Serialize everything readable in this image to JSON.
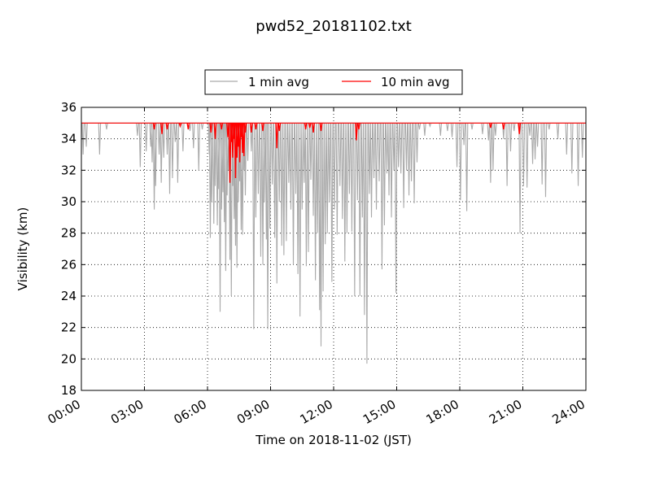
{
  "chart_data": {
    "type": "line",
    "title": "pwd52_20181102.txt",
    "xlabel": "Time on 2018-11-02 (JST)",
    "ylabel": "Visibility (km)",
    "xlim": [
      "00:00",
      "24:00"
    ],
    "ylim": [
      18,
      36
    ],
    "xticks": [
      "00:00",
      "03:00",
      "06:00",
      "09:00",
      "12:00",
      "15:00",
      "18:00",
      "21:00",
      "24:00"
    ],
    "yticks": [
      18,
      20,
      22,
      24,
      26,
      28,
      30,
      32,
      34,
      36
    ],
    "grid": true,
    "legend_position": "top-center",
    "series": [
      {
        "name": "1 min avg",
        "color": "#aaaaaa",
        "baseline": 35.0,
        "dips": [
          [
            "00:05",
            33.0
          ],
          [
            "00:14",
            33.5
          ],
          [
            "00:52",
            33.0
          ],
          [
            "01:12",
            34.6
          ],
          [
            "02:40",
            34.2
          ],
          [
            "02:48",
            32.2
          ],
          [
            "03:05",
            33.2
          ],
          [
            "03:18",
            33.5
          ],
          [
            "03:22",
            32.5
          ],
          [
            "03:28",
            29.5
          ],
          [
            "03:32",
            31.0
          ],
          [
            "03:42",
            33.0
          ],
          [
            "03:48",
            31.2
          ],
          [
            "03:55",
            32.8
          ],
          [
            "04:05",
            33.0
          ],
          [
            "04:12",
            30.5
          ],
          [
            "04:20",
            31.5
          ],
          [
            "04:28",
            33.8
          ],
          [
            "04:35",
            31.2
          ],
          [
            "04:50",
            33.2
          ],
          [
            "05:10",
            34.5
          ],
          [
            "05:20",
            33.4
          ],
          [
            "05:35",
            32.0
          ],
          [
            "05:45",
            34.6
          ],
          [
            "06:05",
            33.0
          ],
          [
            "06:08",
            27.7
          ],
          [
            "06:12",
            30.0
          ],
          [
            "06:18",
            28.6
          ],
          [
            "06:22",
            31.0
          ],
          [
            "06:28",
            28.5
          ],
          [
            "06:32",
            30.8
          ],
          [
            "06:36",
            23.0
          ],
          [
            "06:40",
            29.5
          ],
          [
            "06:44",
            30.6
          ],
          [
            "06:48",
            28.7
          ],
          [
            "06:52",
            25.6
          ],
          [
            "06:56",
            30.4
          ],
          [
            "07:00",
            32.0
          ],
          [
            "07:04",
            26.3
          ],
          [
            "07:08",
            24.0
          ],
          [
            "07:12",
            31.0
          ],
          [
            "07:16",
            28.9
          ],
          [
            "07:20",
            27.2
          ],
          [
            "07:24",
            25.8
          ],
          [
            "07:28",
            30.0
          ],
          [
            "07:32",
            31.3
          ],
          [
            "07:36",
            28.2
          ],
          [
            "07:40",
            27.9
          ],
          [
            "07:44",
            32.0
          ],
          [
            "07:48",
            30.4
          ],
          [
            "07:55",
            32.6
          ],
          [
            "08:05",
            33.2
          ],
          [
            "08:12",
            21.9
          ],
          [
            "08:18",
            29.0
          ],
          [
            "08:25",
            30.5
          ],
          [
            "08:32",
            26.5
          ],
          [
            "08:38",
            26.0
          ],
          [
            "08:42",
            30.0
          ],
          [
            "08:48",
            27.6
          ],
          [
            "08:52",
            21.9
          ],
          [
            "08:58",
            28.3
          ],
          [
            "09:05",
            31.1
          ],
          [
            "09:12",
            27.7
          ],
          [
            "09:18",
            24.8
          ],
          [
            "09:25",
            30.0
          ],
          [
            "09:32",
            27.2
          ],
          [
            "09:38",
            26.6
          ],
          [
            "09:45",
            27.5
          ],
          [
            "09:52",
            31.2
          ],
          [
            "09:58",
            29.5
          ],
          [
            "10:05",
            26.0
          ],
          [
            "10:12",
            30.5
          ],
          [
            "10:18",
            25.4
          ],
          [
            "10:24",
            22.7
          ],
          [
            "10:30",
            29.5
          ],
          [
            "10:36",
            31.2
          ],
          [
            "10:42",
            25.9
          ],
          [
            "10:48",
            26.8
          ],
          [
            "10:55",
            31.4
          ],
          [
            "11:02",
            29.1
          ],
          [
            "11:08",
            25.0
          ],
          [
            "11:14",
            28.0
          ],
          [
            "11:20",
            23.1
          ],
          [
            "11:24",
            20.8
          ],
          [
            "11:30",
            24.3
          ],
          [
            "11:36",
            27.3
          ],
          [
            "11:42",
            28.0
          ],
          [
            "11:48",
            30.0
          ],
          [
            "11:55",
            24.9
          ],
          [
            "12:02",
            29.5
          ],
          [
            "12:10",
            27.9
          ],
          [
            "12:18",
            31.0
          ],
          [
            "12:25",
            28.9
          ],
          [
            "12:32",
            26.2
          ],
          [
            "12:38",
            28.0
          ],
          [
            "12:45",
            30.5
          ],
          [
            "12:52",
            28.1
          ],
          [
            "13:00",
            24.0
          ],
          [
            "13:08",
            30.1
          ],
          [
            "13:15",
            24.0
          ],
          [
            "13:22",
            29.0
          ],
          [
            "13:28",
            22.8
          ],
          [
            "13:35",
            19.7
          ],
          [
            "13:42",
            30.5
          ],
          [
            "13:48",
            29.0
          ],
          [
            "13:55",
            31.5
          ],
          [
            "14:02",
            29.5
          ],
          [
            "14:10",
            31.3
          ],
          [
            "14:18",
            25.7
          ],
          [
            "14:25",
            28.5
          ],
          [
            "14:32",
            31.8
          ],
          [
            "14:38",
            30.4
          ],
          [
            "14:45",
            29.0
          ],
          [
            "14:52",
            32.0
          ],
          [
            "14:58",
            24.2
          ],
          [
            "15:05",
            32.2
          ],
          [
            "15:12",
            31.8
          ],
          [
            "15:20",
            29.6
          ],
          [
            "15:28",
            32.0
          ],
          [
            "15:35",
            30.4
          ],
          [
            "15:42",
            31.3
          ],
          [
            "15:50",
            29.9
          ],
          [
            "15:58",
            32.5
          ],
          [
            "16:05",
            34.6
          ],
          [
            "16:20",
            34.2
          ],
          [
            "16:35",
            34.8
          ],
          [
            "17:05",
            34.2
          ],
          [
            "17:25",
            34.5
          ],
          [
            "17:38",
            34.1
          ],
          [
            "17:52",
            32.2
          ],
          [
            "18:02",
            30.1
          ],
          [
            "18:12",
            33.6
          ],
          [
            "18:20",
            29.4
          ],
          [
            "18:35",
            34.6
          ],
          [
            "19:05",
            34.3
          ],
          [
            "19:22",
            33.9
          ],
          [
            "19:28",
            31.2
          ],
          [
            "19:35",
            32.0
          ],
          [
            "19:42",
            34.2
          ],
          [
            "20:05",
            34.0
          ],
          [
            "20:15",
            31.0
          ],
          [
            "20:25",
            33.2
          ],
          [
            "20:35",
            34.5
          ],
          [
            "20:52",
            28.0
          ],
          [
            "21:02",
            31.0
          ],
          [
            "21:12",
            30.9
          ],
          [
            "21:20",
            34.2
          ],
          [
            "21:28",
            32.4
          ],
          [
            "21:35",
            32.7
          ],
          [
            "21:42",
            33.5
          ],
          [
            "21:55",
            31.1
          ],
          [
            "22:05",
            30.3
          ],
          [
            "22:15",
            34.6
          ],
          [
            "22:40",
            34.0
          ],
          [
            "23:05",
            33.0
          ],
          [
            "23:20",
            31.8
          ],
          [
            "23:38",
            31.0
          ],
          [
            "23:50",
            32.8
          ]
        ]
      },
      {
        "name": "10 min avg",
        "color": "#ff0000",
        "baseline": 35.0,
        "dips": [
          [
            "03:28",
            34.6
          ],
          [
            "03:50",
            34.3
          ],
          [
            "04:05",
            34.6
          ],
          [
            "04:42",
            34.8
          ],
          [
            "05:05",
            34.6
          ],
          [
            "06:10",
            34.4
          ],
          [
            "06:22",
            34.0
          ],
          [
            "06:40",
            34.6
          ],
          [
            "06:58",
            34.1
          ],
          [
            "07:04",
            31.2
          ],
          [
            "07:08",
            33.8
          ],
          [
            "07:12",
            32.8
          ],
          [
            "07:16",
            34.0
          ],
          [
            "07:20",
            31.5
          ],
          [
            "07:24",
            32.8
          ],
          [
            "07:28",
            33.5
          ],
          [
            "07:32",
            32.5
          ],
          [
            "07:36",
            34.1
          ],
          [
            "07:40",
            33.1
          ],
          [
            "07:44",
            32.9
          ],
          [
            "07:48",
            34.4
          ],
          [
            "08:05",
            34.4
          ],
          [
            "08:18",
            34.6
          ],
          [
            "08:38",
            34.5
          ],
          [
            "09:18",
            33.4
          ],
          [
            "09:25",
            34.5
          ],
          [
            "10:40",
            34.6
          ],
          [
            "10:52",
            34.7
          ],
          [
            "11:02",
            34.4
          ],
          [
            "11:24",
            34.5
          ],
          [
            "13:05",
            33.9
          ],
          [
            "13:12",
            34.6
          ],
          [
            "19:28",
            34.7
          ],
          [
            "20:05",
            34.6
          ],
          [
            "20:50",
            34.3
          ]
        ]
      }
    ]
  }
}
